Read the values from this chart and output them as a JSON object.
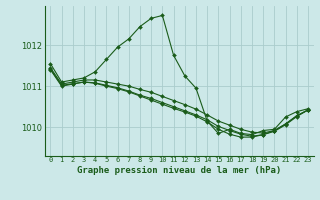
{
  "title": "Graphe pression niveau de la mer (hPa)",
  "bg_color": "#cce8e8",
  "grid_color": "#aacccc",
  "line_color": "#1a5c1a",
  "xlim": [
    -0.5,
    23.5
  ],
  "ylim": [
    1009.3,
    1012.95
  ],
  "yticks": [
    1010,
    1011,
    1012
  ],
  "xtick_labels": [
    "0",
    "1",
    "2",
    "3",
    "4",
    "5",
    "6",
    "7",
    "8",
    "9",
    "10",
    "11",
    "12",
    "13",
    "14",
    "15",
    "16",
    "17",
    "18",
    "19",
    "20",
    "21",
    "22",
    "23"
  ],
  "series": [
    [
      1011.55,
      1011.1,
      1011.15,
      1011.2,
      1011.35,
      1011.65,
      1011.95,
      1012.15,
      1012.45,
      1012.65,
      1012.72,
      1011.75,
      1011.25,
      1010.95,
      1010.15,
      1009.85,
      1009.95,
      1009.85,
      1009.82,
      1009.92,
      1009.95,
      1010.25,
      1010.38,
      1010.45
    ],
    [
      1011.45,
      1011.05,
      1011.1,
      1011.15,
      1011.15,
      1011.1,
      1011.05,
      1011.0,
      1010.92,
      1010.85,
      1010.75,
      1010.65,
      1010.55,
      1010.44,
      1010.3,
      1010.15,
      1010.05,
      1009.95,
      1009.88,
      1009.86,
      1009.92,
      1010.08,
      1010.28,
      1010.42
    ],
    [
      1011.4,
      1011.0,
      1011.05,
      1011.1,
      1011.08,
      1011.02,
      1010.96,
      1010.88,
      1010.78,
      1010.7,
      1010.6,
      1010.5,
      1010.4,
      1010.3,
      1010.18,
      1010.02,
      1009.92,
      1009.83,
      1009.78,
      1009.82,
      1009.9,
      1010.06,
      1010.26,
      1010.42
    ],
    [
      1011.42,
      1011.02,
      1011.06,
      1011.1,
      1011.07,
      1011.0,
      1010.94,
      1010.86,
      1010.76,
      1010.66,
      1010.56,
      1010.46,
      1010.37,
      1010.27,
      1010.13,
      1009.95,
      1009.83,
      1009.76,
      1009.76,
      1009.82,
      1009.92,
      1010.08,
      1010.28,
      1010.42
    ]
  ]
}
